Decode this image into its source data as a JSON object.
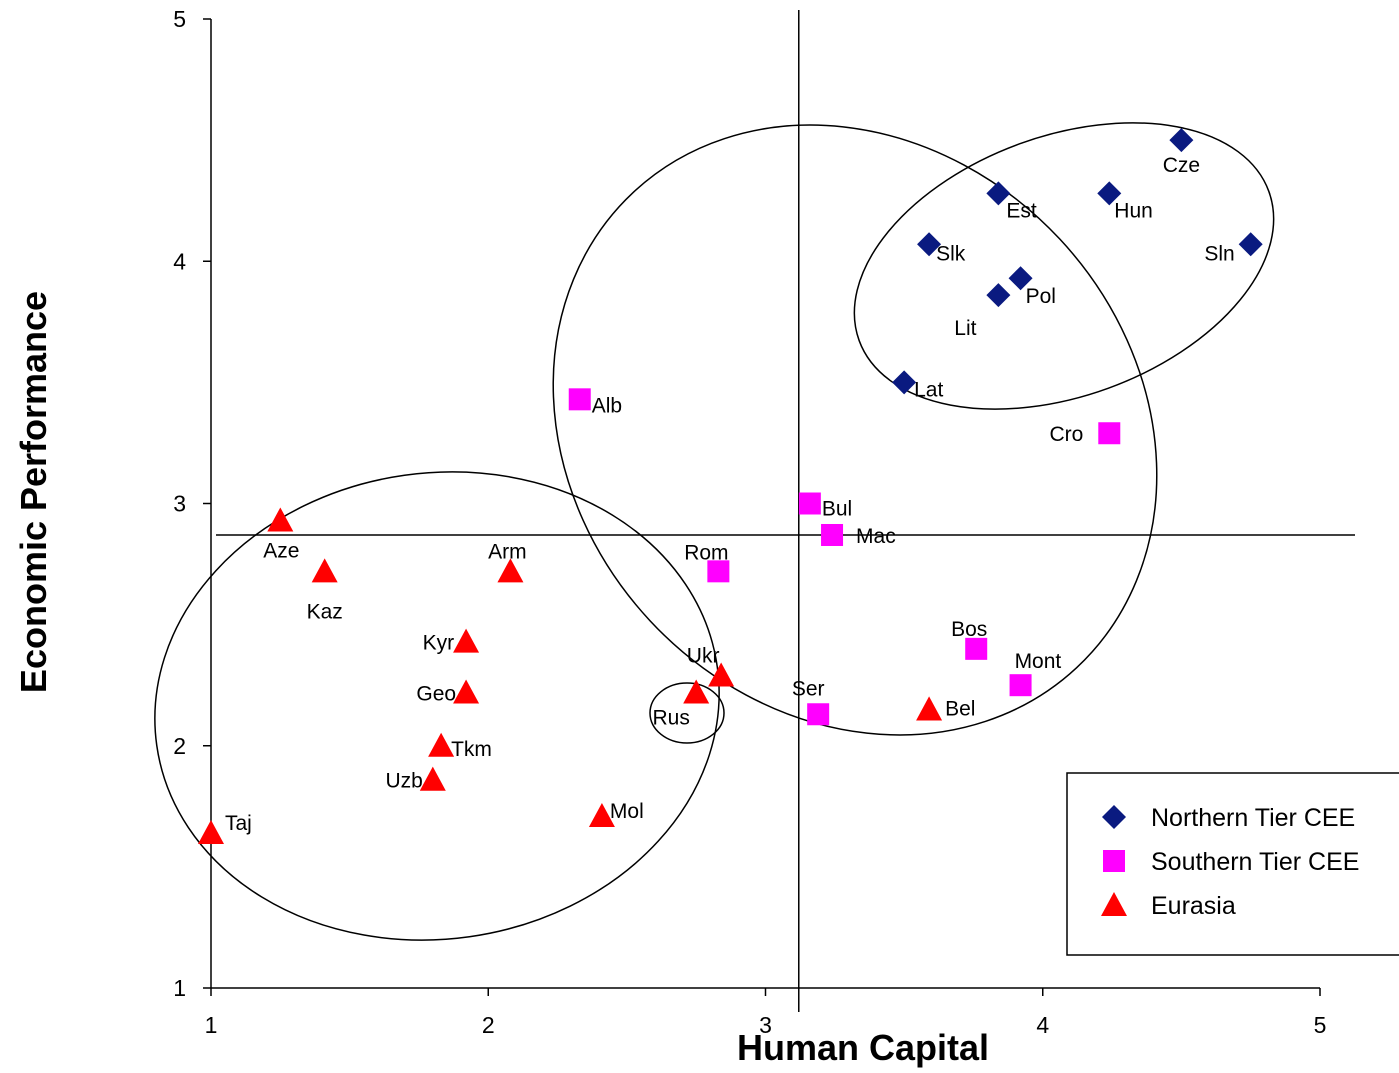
{
  "chart_data": {
    "type": "scatter",
    "xlabel": "Human Capital",
    "ylabel": "Economic Performance",
    "xlim": [
      1,
      5
    ],
    "ylim": [
      1,
      5
    ],
    "xticks": [
      "1",
      "2",
      "3",
      "4",
      "5"
    ],
    "yticks": [
      "1",
      "2",
      "3",
      "4",
      "5"
    ],
    "grid": false,
    "legend_position": "bottom-right",
    "reference_lines": {
      "vertical_x": 3.12,
      "horizontal_y": 2.87
    },
    "series": [
      {
        "name": "Northern Tier CEE",
        "marker": "diamond",
        "color": "#0a1a80",
        "points": [
          {
            "label": "Cze",
            "x": 4.5,
            "y": 4.5
          },
          {
            "label": "Est",
            "x": 3.84,
            "y": 4.28
          },
          {
            "label": "Hun",
            "x": 4.24,
            "y": 4.28
          },
          {
            "label": "Slk",
            "x": 3.59,
            "y": 4.07
          },
          {
            "label": "Sln",
            "x": 4.75,
            "y": 4.07
          },
          {
            "label": "Pol",
            "x": 3.92,
            "y": 3.93
          },
          {
            "label": "Lit",
            "x": 3.84,
            "y": 3.86
          },
          {
            "label": "Lat",
            "x": 3.5,
            "y": 3.5
          }
        ]
      },
      {
        "name": "Southern Tier CEE",
        "marker": "square",
        "color": "#ff00ff",
        "points": [
          {
            "label": "Alb",
            "x": 2.33,
            "y": 3.43
          },
          {
            "label": "Cro",
            "x": 4.24,
            "y": 3.29
          },
          {
            "label": "Bul",
            "x": 3.16,
            "y": 3.0
          },
          {
            "label": "Mac",
            "x": 3.24,
            "y": 2.87
          },
          {
            "label": "Rom",
            "x": 2.83,
            "y": 2.72
          },
          {
            "label": "Bos",
            "x": 3.76,
            "y": 2.4
          },
          {
            "label": "Mont",
            "x": 3.92,
            "y": 2.25
          },
          {
            "label": "Ser",
            "x": 3.19,
            "y": 2.13
          }
        ]
      },
      {
        "name": "Eurasia",
        "marker": "triangle",
        "color": "#ff0000",
        "points": [
          {
            "label": "Aze",
            "x": 1.25,
            "y": 2.93
          },
          {
            "label": "Kaz",
            "x": 1.41,
            "y": 2.72
          },
          {
            "label": "Arm",
            "x": 2.08,
            "y": 2.72
          },
          {
            "label": "Kyr",
            "x": 1.92,
            "y": 2.43
          },
          {
            "label": "Geo",
            "x": 1.92,
            "y": 2.22
          },
          {
            "label": "Ukr",
            "x": 2.84,
            "y": 2.29
          },
          {
            "label": "Rus",
            "x": 2.75,
            "y": 2.22
          },
          {
            "label": "Bel",
            "x": 3.59,
            "y": 2.15
          },
          {
            "label": "Tkm",
            "x": 1.83,
            "y": 2.0
          },
          {
            "label": "Uzb",
            "x": 1.8,
            "y": 1.86
          },
          {
            "label": "Mol",
            "x": 2.41,
            "y": 1.71
          },
          {
            "label": "Taj",
            "x": 1.0,
            "y": 1.64
          }
        ]
      }
    ]
  }
}
